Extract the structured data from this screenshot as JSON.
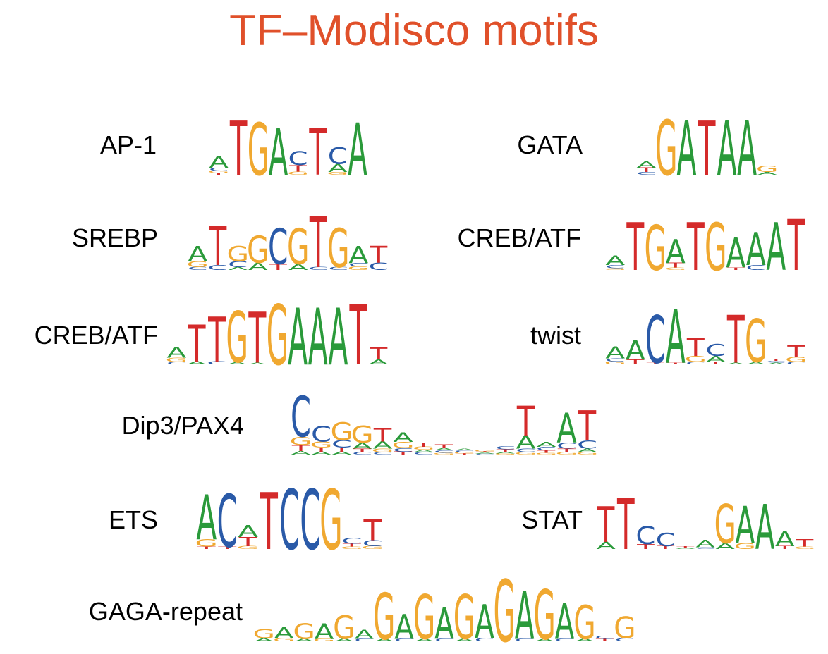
{
  "title": "TF–Modisco motifs",
  "colors": {
    "title": "#e0502a",
    "A": "#2a9a3a",
    "C": "#2a5aa8",
    "G": "#f0a830",
    "T": "#d42a2a"
  },
  "motifs": [
    {
      "name": "AP-1",
      "consensus": "ATGACTCA",
      "columns": [
        [
          [
            "A",
            0.22
          ],
          [
            "C",
            0.06
          ],
          [
            "G",
            0.04
          ],
          [
            "T",
            0.03
          ]
        ],
        [
          [
            "T",
            1.0
          ]
        ],
        [
          [
            "G",
            0.95
          ]
        ],
        [
          [
            "A",
            0.85
          ]
        ],
        [
          [
            "C",
            0.25
          ],
          [
            "T",
            0.12
          ],
          [
            "G",
            0.06
          ]
        ],
        [
          [
            "T",
            0.85
          ]
        ],
        [
          [
            "C",
            0.3
          ],
          [
            "A",
            0.15
          ],
          [
            "G",
            0.05
          ]
        ],
        [
          [
            "A",
            0.95
          ]
        ]
      ]
    },
    {
      "name": "GATA",
      "consensus": "AGATAAG",
      "columns": [
        [
          [
            "A",
            0.12
          ],
          [
            "T",
            0.08
          ],
          [
            "C",
            0.05
          ]
        ],
        [
          [
            "G",
            1.0
          ]
        ],
        [
          [
            "A",
            1.0
          ]
        ],
        [
          [
            "T",
            1.0
          ]
        ],
        [
          [
            "A",
            1.0
          ]
        ],
        [
          [
            "A",
            1.0
          ]
        ],
        [
          [
            "G",
            0.12
          ],
          [
            "A",
            0.05
          ]
        ]
      ]
    },
    {
      "name": "SREBP",
      "consensus": "ATGGCGTGAT",
      "columns": [
        [
          [
            "A",
            0.25
          ],
          [
            "G",
            0.1
          ],
          [
            "C",
            0.05
          ]
        ],
        [
          [
            "T",
            0.65
          ],
          [
            "C",
            0.08
          ]
        ],
        [
          [
            "G",
            0.25
          ],
          [
            "C",
            0.1
          ],
          [
            "A",
            0.05
          ]
        ],
        [
          [
            "G",
            0.45
          ],
          [
            "A",
            0.12
          ]
        ],
        [
          [
            "C",
            0.6
          ],
          [
            "T",
            0.1
          ]
        ],
        [
          [
            "G",
            0.6
          ],
          [
            "A",
            0.1
          ]
        ],
        [
          [
            "T",
            0.85
          ],
          [
            "C",
            0.05
          ]
        ],
        [
          [
            "G",
            0.65
          ],
          [
            "C",
            0.05
          ]
        ],
        [
          [
            "A",
            0.28
          ],
          [
            "G",
            0.06
          ],
          [
            "C",
            0.06
          ]
        ],
        [
          [
            "T",
            0.28
          ],
          [
            "C",
            0.12
          ]
        ]
      ]
    },
    {
      "name": "CREB/ATF",
      "consensus": "ATGATGAAAT",
      "columns": [
        [
          [
            "A",
            0.16
          ],
          [
            "C",
            0.05
          ],
          [
            "G",
            0.03
          ]
        ],
        [
          [
            "T",
            0.8
          ]
        ],
        [
          [
            "G",
            0.75
          ]
        ],
        [
          [
            "A",
            0.4
          ],
          [
            "T",
            0.08
          ],
          [
            "G",
            0.04
          ]
        ],
        [
          [
            "T",
            0.8
          ]
        ],
        [
          [
            "G",
            0.8
          ]
        ],
        [
          [
            "A",
            0.5
          ],
          [
            "T",
            0.04
          ]
        ],
        [
          [
            "A",
            0.55
          ],
          [
            "C",
            0.08
          ]
        ],
        [
          [
            "A",
            0.8
          ]
        ],
        [
          [
            "T",
            0.85
          ]
        ]
      ]
    },
    {
      "name": "CREB/ATF",
      "consensus": "ATTGTGAAATT",
      "columns": [
        [
          [
            "A",
            0.18
          ],
          [
            "G",
            0.07
          ],
          [
            "C",
            0.04
          ]
        ],
        [
          [
            "T",
            0.62
          ],
          [
            "A",
            0.05
          ]
        ],
        [
          [
            "T",
            0.75
          ],
          [
            "C",
            0.05
          ]
        ],
        [
          [
            "G",
            0.85
          ],
          [
            "A",
            0.04
          ]
        ],
        [
          [
            "T",
            0.85
          ],
          [
            "A",
            0.03
          ]
        ],
        [
          [
            "G",
            1.0
          ]
        ],
        [
          [
            "A",
            0.95
          ]
        ],
        [
          [
            "A",
            0.95
          ]
        ],
        [
          [
            "A",
            0.95
          ]
        ],
        [
          [
            "T",
            1.0
          ]
        ],
        [
          [
            "T",
            0.2
          ],
          [
            "A",
            0.08
          ]
        ]
      ]
    },
    {
      "name": "twist",
      "consensus": "AACATCTGT",
      "columns": [
        [
          [
            "A",
            0.2
          ],
          [
            "G",
            0.05
          ],
          [
            "C",
            0.05
          ]
        ],
        [
          [
            "A",
            0.33
          ],
          [
            "T",
            0.08
          ]
        ],
        [
          [
            "C",
            0.8
          ],
          [
            "T",
            0.03
          ]
        ],
        [
          [
            "A",
            0.9
          ],
          [
            "T",
            0.03
          ]
        ],
        [
          [
            "T",
            0.3
          ],
          [
            "G",
            0.1
          ],
          [
            "C",
            0.04
          ]
        ],
        [
          [
            "C",
            0.2
          ],
          [
            "A",
            0.1
          ],
          [
            "T",
            0.04
          ]
        ],
        [
          [
            "T",
            0.8
          ],
          [
            "A",
            0.03
          ]
        ],
        [
          [
            "G",
            0.72
          ],
          [
            "A",
            0.04
          ]
        ],
        [
          [
            "A",
            0.03
          ],
          [
            "C",
            0.03
          ],
          [
            "T",
            0.03
          ]
        ],
        [
          [
            "T",
            0.2
          ],
          [
            "G",
            0.08
          ],
          [
            "C",
            0.04
          ]
        ]
      ]
    },
    {
      "name": "Dip3/PAX4",
      "consensus": "CCGGTA TAT",
      "columns": [
        [
          [
            "C",
            0.68
          ],
          [
            "G",
            0.14
          ],
          [
            "T",
            0.1
          ],
          [
            "A",
            0.06
          ]
        ],
        [
          [
            "C",
            0.26
          ],
          [
            "G",
            0.1
          ],
          [
            "T",
            0.07
          ],
          [
            "A",
            0.05
          ]
        ],
        [
          [
            "G",
            0.3
          ],
          [
            "C",
            0.12
          ],
          [
            "T",
            0.07
          ],
          [
            "A",
            0.05
          ]
        ],
        [
          [
            "G",
            0.28
          ],
          [
            "A",
            0.1
          ],
          [
            "T",
            0.06
          ],
          [
            "C",
            0.04
          ]
        ],
        [
          [
            "T",
            0.22
          ],
          [
            "A",
            0.12
          ],
          [
            "G",
            0.06
          ],
          [
            "C",
            0.04
          ]
        ],
        [
          [
            "A",
            0.16
          ],
          [
            "G",
            0.1
          ],
          [
            "C",
            0.06
          ],
          [
            "T",
            0.05
          ]
        ],
        [
          [
            "T",
            0.07
          ],
          [
            "G",
            0.05
          ],
          [
            "C",
            0.04
          ],
          [
            "A",
            0.04
          ]
        ],
        [
          [
            "T",
            0.06
          ],
          [
            "C",
            0.04
          ],
          [
            "A",
            0.04
          ],
          [
            "G",
            0.03
          ]
        ],
        [
          [
            "C",
            0.03
          ],
          [
            "A",
            0.03
          ],
          [
            "T",
            0.02
          ],
          [
            "G",
            0.02
          ]
        ],
        [
          [
            "A",
            0.02
          ],
          [
            "T",
            0.02
          ],
          [
            "G",
            0.02
          ],
          [
            "C",
            0.01
          ]
        ],
        [
          [
            "C",
            0.05
          ],
          [
            "T",
            0.04
          ],
          [
            "A",
            0.03
          ],
          [
            "G",
            0.02
          ]
        ],
        [
          [
            "T",
            0.5
          ],
          [
            "A",
            0.22
          ],
          [
            "C",
            0.06
          ],
          [
            "G",
            0.04
          ]
        ],
        [
          [
            "A",
            0.08
          ],
          [
            "C",
            0.06
          ],
          [
            "T",
            0.04
          ],
          [
            "G",
            0.03
          ]
        ],
        [
          [
            "A",
            0.5
          ],
          [
            "C",
            0.1
          ],
          [
            "T",
            0.06
          ],
          [
            "G",
            0.04
          ]
        ],
        [
          [
            "T",
            0.5
          ],
          [
            "C",
            0.14
          ],
          [
            "A",
            0.06
          ],
          [
            "G",
            0.04
          ]
        ]
      ]
    },
    {
      "name": "ETS",
      "consensus": "ACATCCGCT",
      "columns": [
        [
          [
            "A",
            0.75
          ],
          [
            "G",
            0.12
          ],
          [
            "T",
            0.04
          ]
        ],
        [
          [
            "C",
            0.88
          ],
          [
            "T",
            0.04
          ]
        ],
        [
          [
            "A",
            0.2
          ],
          [
            "T",
            0.15
          ],
          [
            "G",
            0.05
          ]
        ],
        [
          [
            "T",
            0.95
          ]
        ],
        [
          [
            "C",
            1.0
          ]
        ],
        [
          [
            "C",
            1.0
          ]
        ],
        [
          [
            "G",
            1.0
          ]
        ],
        [
          [
            "C",
            0.1
          ],
          [
            "T",
            0.05
          ],
          [
            "G",
            0.04
          ]
        ],
        [
          [
            "T",
            0.35
          ],
          [
            "C",
            0.1
          ],
          [
            "G",
            0.05
          ]
        ]
      ]
    },
    {
      "name": "STAT",
      "consensus": "TTCCAGAAAT",
      "columns": [
        [
          [
            "T",
            0.6
          ],
          [
            "A",
            0.12
          ]
        ],
        [
          [
            "T",
            0.85
          ]
        ],
        [
          [
            "C",
            0.3
          ],
          [
            "T",
            0.08
          ]
        ],
        [
          [
            "C",
            0.22
          ],
          [
            "T",
            0.05
          ]
        ],
        [
          [
            "T",
            0.03
          ],
          [
            "A",
            0.02
          ]
        ],
        [
          [
            "A",
            0.12
          ],
          [
            "C",
            0.03
          ]
        ],
        [
          [
            "G",
            0.65
          ],
          [
            "A",
            0.1
          ]
        ],
        [
          [
            "A",
            0.62
          ],
          [
            "G",
            0.1
          ]
        ],
        [
          [
            "A",
            0.75
          ]
        ],
        [
          [
            "A",
            0.25
          ],
          [
            "T",
            0.05
          ]
        ],
        [
          [
            "T",
            0.12
          ],
          [
            "G",
            0.04
          ]
        ]
      ]
    },
    {
      "name": "GAGA-repeat",
      "consensus": "GAGAGAGAGAGAGAGAG G",
      "columns": [
        [
          [
            "G",
            0.15
          ],
          [
            "A",
            0.05
          ]
        ],
        [
          [
            "A",
            0.18
          ],
          [
            "G",
            0.05
          ]
        ],
        [
          [
            "G",
            0.25
          ],
          [
            "A",
            0.04
          ]
        ],
        [
          [
            "A",
            0.25
          ],
          [
            "G",
            0.04
          ]
        ],
        [
          [
            "G",
            0.38
          ],
          [
            "A",
            0.04
          ]
        ],
        [
          [
            "A",
            0.15
          ],
          [
            "C",
            0.04
          ]
        ],
        [
          [
            "G",
            0.75
          ],
          [
            "A",
            0.04
          ]
        ],
        [
          [
            "A",
            0.4
          ],
          [
            "C",
            0.04
          ]
        ],
        [
          [
            "G",
            0.72
          ],
          [
            "A",
            0.04
          ]
        ],
        [
          [
            "A",
            0.5
          ],
          [
            "C",
            0.04
          ]
        ],
        [
          [
            "G",
            0.72
          ],
          [
            "A",
            0.04
          ]
        ],
        [
          [
            "A",
            0.55
          ],
          [
            "C",
            0.05
          ]
        ],
        [
          [
            "G",
            1.0
          ]
        ],
        [
          [
            "A",
            0.78
          ],
          [
            "C",
            0.04
          ]
        ],
        [
          [
            "G",
            0.8
          ],
          [
            "A",
            0.04
          ]
        ],
        [
          [
            "A",
            0.58
          ],
          [
            "C",
            0.04
          ]
        ],
        [
          [
            "G",
            0.55
          ],
          [
            "A",
            0.04
          ]
        ],
        [
          [
            "C",
            0.05
          ],
          [
            "T",
            0.04
          ]
        ],
        [
          [
            "G",
            0.35
          ],
          [
            "C",
            0.05
          ]
        ]
      ]
    }
  ]
}
